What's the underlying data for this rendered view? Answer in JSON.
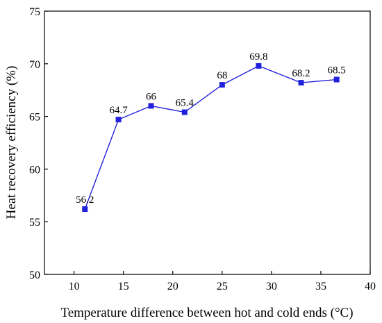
{
  "chart_data": {
    "type": "line",
    "x": [
      11.1,
      14.5,
      17.8,
      21.2,
      25.0,
      28.7,
      33.0,
      36.6
    ],
    "values": [
      56.2,
      64.7,
      66,
      65.4,
      68,
      69.8,
      68.2,
      68.5
    ],
    "data_labels": [
      "56.2",
      "64.7",
      "66",
      "65.4",
      "68",
      "69.8",
      "68.2",
      "68.5"
    ],
    "xlabel": "Temperature difference between hot and cold ends (°C)",
    "ylabel": "Heat recovery efficiency (%)",
    "xlim": [
      7,
      40
    ],
    "ylim": [
      50,
      75
    ],
    "xticks": [
      10,
      15,
      20,
      25,
      30,
      35,
      40
    ],
    "xtick_labels": [
      "10",
      "15",
      "20",
      "25",
      "30",
      "35",
      "40"
    ],
    "yticks": [
      50,
      55,
      60,
      65,
      70,
      75
    ],
    "ytick_labels": [
      "50",
      "55",
      "60",
      "65",
      "70",
      "75"
    ],
    "line_color": "#2222dd",
    "marker": "square",
    "grid": false,
    "legend": "none"
  }
}
